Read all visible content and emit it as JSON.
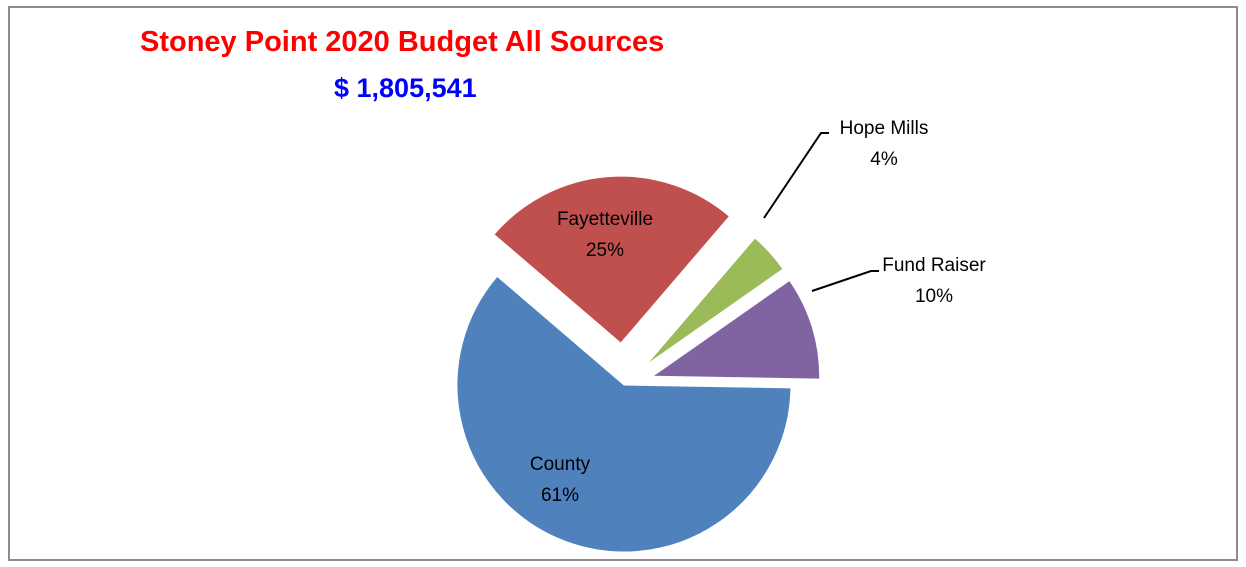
{
  "chart_data": {
    "type": "pie",
    "title": "Stoney Point 2020 Budget All Sources",
    "subtitle": "$ 1,805,541",
    "slices": [
      {
        "name": "County",
        "value": 61,
        "label": "61%",
        "color": "#4f81bd"
      },
      {
        "name": "Fayetteville",
        "value": 25,
        "label": "25%",
        "color": "#c0504d"
      },
      {
        "name": "Hope Mills",
        "value": 4,
        "label": "4%",
        "color": "#9bbb59"
      },
      {
        "name": "Fund Raiser",
        "value": 10,
        "label": "10%",
        "color": "#8064a2"
      }
    ],
    "legend": "none",
    "exploded": true
  }
}
